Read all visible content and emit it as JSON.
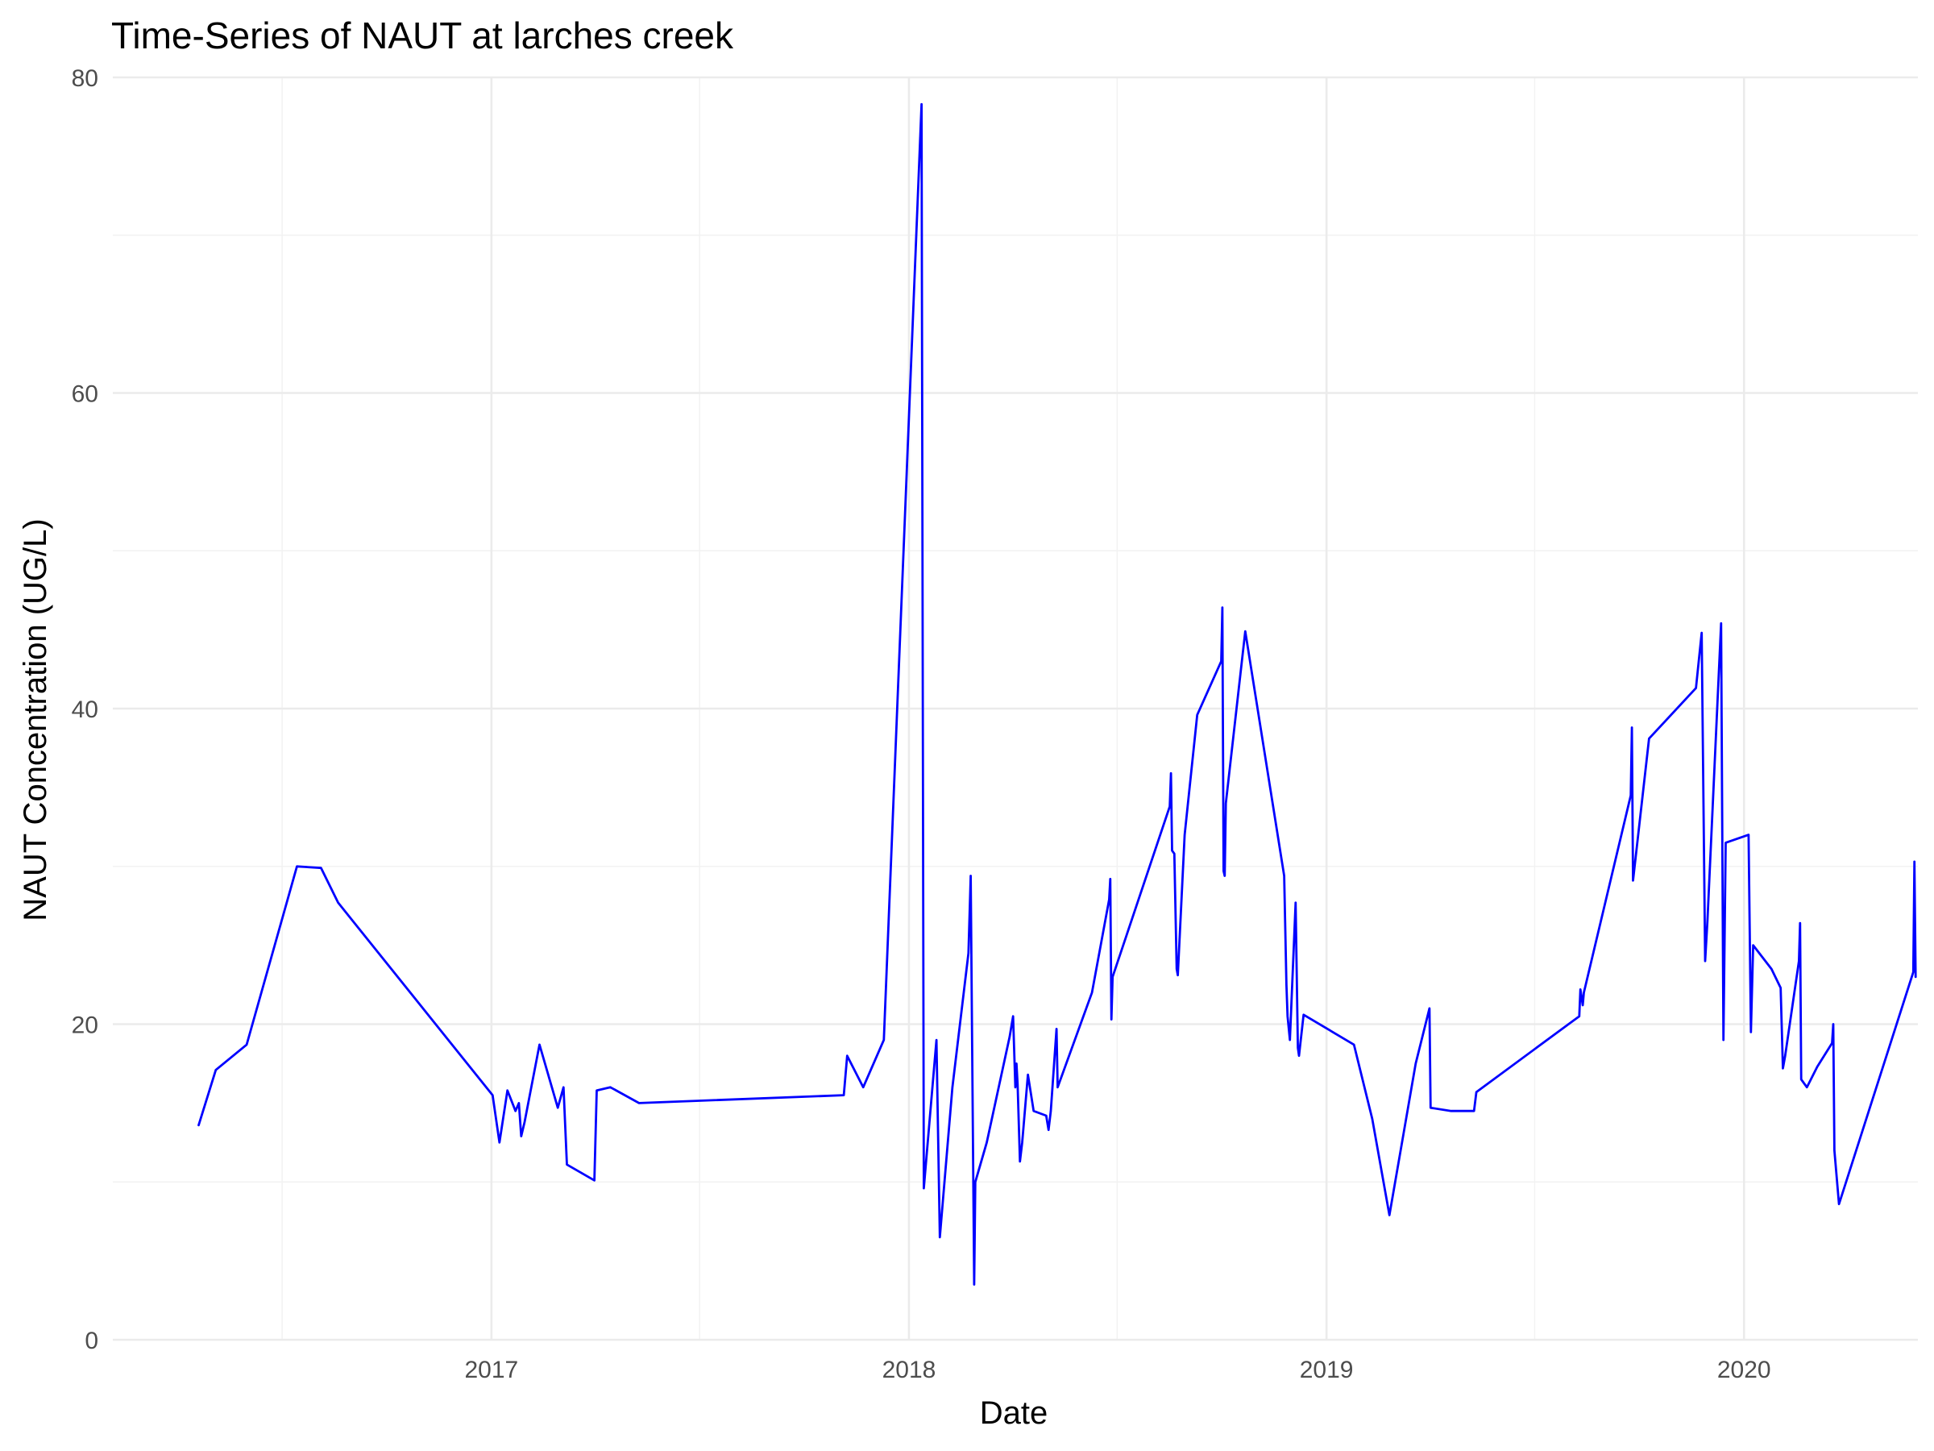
{
  "chart_data": {
    "type": "line",
    "title": "Time-Series of NAUT at larches creek",
    "xlabel": "Date",
    "ylabel": "NAUT Concentration (UG/L)",
    "x_axis_type": "date",
    "xlim": [
      "2016-02-05",
      "2020-06-01"
    ],
    "ylim": [
      0,
      80
    ],
    "x_ticks": [
      {
        "date": "2017-01-01",
        "label": "2017"
      },
      {
        "date": "2018-01-01",
        "label": "2018"
      },
      {
        "date": "2019-01-01",
        "label": "2019"
      },
      {
        "date": "2020-01-01",
        "label": "2020"
      }
    ],
    "x_minor_ticks": [
      "2016-07-02",
      "2017-07-02",
      "2018-07-02",
      "2019-07-02"
    ],
    "y_ticks": [
      0,
      20,
      40,
      60,
      80
    ],
    "y_minor_ticks": [
      10,
      30,
      50,
      70
    ],
    "grid": true,
    "legend": "none",
    "line_color": "#0000ff",
    "series": [
      {
        "points": [
          [
            "2016-04-20",
            13.6
          ],
          [
            "2016-05-05",
            17.1
          ],
          [
            "2016-06-01",
            18.7
          ],
          [
            "2016-07-15",
            30.0
          ],
          [
            "2016-08-05",
            29.9
          ],
          [
            "2016-08-20",
            27.7
          ],
          [
            "2017-01-02",
            15.5
          ],
          [
            "2017-01-08",
            12.5
          ],
          [
            "2017-01-15",
            15.8
          ],
          [
            "2017-01-22",
            14.5
          ],
          [
            "2017-01-25",
            15.0
          ],
          [
            "2017-01-27",
            12.9
          ],
          [
            "2017-01-30",
            13.8
          ],
          [
            "2017-02-12",
            18.7
          ],
          [
            "2017-02-28",
            14.7
          ],
          [
            "2017-03-05",
            16.0
          ],
          [
            "2017-03-08",
            11.1
          ],
          [
            "2017-04-01",
            10.1
          ],
          [
            "2017-04-03",
            15.8
          ],
          [
            "2017-04-15",
            16.0
          ],
          [
            "2017-05-10",
            15.0
          ],
          [
            "2017-11-05",
            15.5
          ],
          [
            "2017-11-08",
            18.0
          ],
          [
            "2017-11-22",
            16.0
          ],
          [
            "2017-12-10",
            19.0
          ],
          [
            "2018-01-12",
            78.3
          ],
          [
            "2018-01-14",
            9.6
          ],
          [
            "2018-01-15",
            10.5
          ],
          [
            "2018-01-25",
            19.0
          ],
          [
            "2018-01-28",
            6.5
          ],
          [
            "2018-02-08",
            16.0
          ],
          [
            "2018-02-22",
            24.5
          ],
          [
            "2018-02-24",
            29.4
          ],
          [
            "2018-02-27",
            3.5
          ],
          [
            "2018-02-28",
            10.0
          ],
          [
            "2018-03-10",
            12.5
          ],
          [
            "2018-03-30",
            19.2
          ],
          [
            "2018-04-02",
            20.5
          ],
          [
            "2018-04-04",
            16.0
          ],
          [
            "2018-04-05",
            17.5
          ],
          [
            "2018-04-06",
            16.2
          ],
          [
            "2018-04-08",
            11.3
          ],
          [
            "2018-04-10",
            12.5
          ],
          [
            "2018-04-15",
            16.8
          ],
          [
            "2018-04-20",
            14.5
          ],
          [
            "2018-05-01",
            14.2
          ],
          [
            "2018-05-03",
            13.3
          ],
          [
            "2018-05-05",
            14.5
          ],
          [
            "2018-05-10",
            19.7
          ],
          [
            "2018-05-11",
            16.0
          ],
          [
            "2018-06-10",
            22.0
          ],
          [
            "2018-06-25",
            27.9
          ],
          [
            "2018-06-26",
            29.2
          ],
          [
            "2018-06-27",
            20.3
          ],
          [
            "2018-06-28",
            23.0
          ],
          [
            "2018-08-17",
            33.8
          ],
          [
            "2018-08-18",
            35.9
          ],
          [
            "2018-08-19",
            31.0
          ],
          [
            "2018-08-21",
            30.8
          ],
          [
            "2018-08-23",
            23.5
          ],
          [
            "2018-08-24",
            23.1
          ],
          [
            "2018-08-30",
            32.0
          ],
          [
            "2018-09-10",
            39.6
          ],
          [
            "2018-10-01",
            43.0
          ],
          [
            "2018-10-02",
            46.4
          ],
          [
            "2018-10-03",
            29.7
          ],
          [
            "2018-10-04",
            29.4
          ],
          [
            "2018-10-05",
            34.0
          ],
          [
            "2018-10-22",
            44.9
          ],
          [
            "2018-11-25",
            29.4
          ],
          [
            "2018-11-27",
            22.5
          ],
          [
            "2018-11-28",
            20.5
          ],
          [
            "2018-11-30",
            19.0
          ],
          [
            "2018-12-05",
            27.7
          ],
          [
            "2018-12-07",
            18.5
          ],
          [
            "2018-12-08",
            18.0
          ],
          [
            "2018-12-12",
            20.6
          ],
          [
            "2019-01-25",
            18.7
          ],
          [
            "2019-02-10",
            14.0
          ],
          [
            "2019-02-25",
            7.9
          ],
          [
            "2019-03-20",
            17.5
          ],
          [
            "2019-04-01",
            21.0
          ],
          [
            "2019-04-02",
            14.7
          ],
          [
            "2019-04-20",
            14.5
          ],
          [
            "2019-05-10",
            14.5
          ],
          [
            "2019-05-12",
            15.7
          ],
          [
            "2019-08-10",
            20.5
          ],
          [
            "2019-08-11",
            22.2
          ],
          [
            "2019-08-13",
            21.2
          ],
          [
            "2019-08-14",
            22.0
          ],
          [
            "2019-09-24",
            34.5
          ],
          [
            "2019-09-25",
            38.8
          ],
          [
            "2019-09-26",
            29.1
          ],
          [
            "2019-10-10",
            38.1
          ],
          [
            "2019-11-20",
            41.3
          ],
          [
            "2019-11-25",
            44.8
          ],
          [
            "2019-11-28",
            24.0
          ],
          [
            "2019-11-30",
            26.5
          ],
          [
            "2019-12-12",
            45.4
          ],
          [
            "2019-12-14",
            19.0
          ],
          [
            "2019-12-16",
            31.5
          ],
          [
            "2020-01-05",
            32.0
          ],
          [
            "2020-01-07",
            19.5
          ],
          [
            "2020-01-09",
            25.0
          ],
          [
            "2020-01-25",
            23.5
          ],
          [
            "2020-02-02",
            22.3
          ],
          [
            "2020-02-04",
            17.2
          ],
          [
            "2020-02-06",
            18.0
          ],
          [
            "2020-02-18",
            24.0
          ],
          [
            "2020-02-19",
            26.4
          ],
          [
            "2020-02-20",
            16.5
          ],
          [
            "2020-02-25",
            16.0
          ],
          [
            "2020-03-05",
            17.3
          ],
          [
            "2020-03-18",
            18.8
          ],
          [
            "2020-03-19",
            20.0
          ],
          [
            "2020-03-20",
            12.0
          ],
          [
            "2020-03-24",
            8.6
          ],
          [
            "2020-05-28",
            23.3
          ],
          [
            "2020-05-29",
            30.3
          ],
          [
            "2020-05-30",
            23.0
          ]
        ]
      }
    ]
  }
}
